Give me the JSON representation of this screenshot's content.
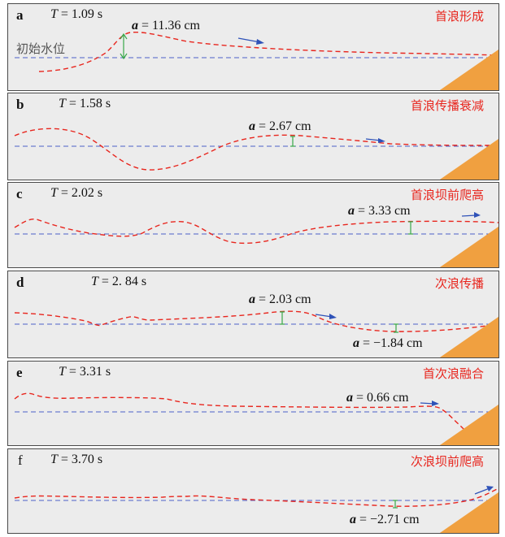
{
  "colors": {
    "background": "#ececec",
    "wave": "#e8261e",
    "still_water": "#4d5fc9",
    "arrow": "#2f52b8",
    "amplitude_marker": "#38a84a",
    "slope": "#f0a040",
    "title": "#e8261e"
  },
  "panels": [
    {
      "letter": "a",
      "time_var": "T",
      "time_text": "= 1.09 s",
      "title": "首浪形成",
      "initial_level_label": "初始水位",
      "annotations": [
        {
          "var": "a",
          "text": "= 11.36 cm"
        }
      ]
    },
    {
      "letter": "b",
      "time_var": "T",
      "time_text": "= 1.58 s",
      "title": "首浪传播衰减",
      "annotations": [
        {
          "var": "a",
          "text": "= 2.67 cm"
        }
      ]
    },
    {
      "letter": "c",
      "time_var": "T",
      "time_text": "= 2.02 s",
      "title": "首浪坝前爬高",
      "annotations": [
        {
          "var": "a",
          "text": "= 3.33 cm"
        }
      ]
    },
    {
      "letter": "d",
      "time_var": "T",
      "time_text": "= 2. 84 s",
      "title": "次浪传播",
      "annotations": [
        {
          "var": "a",
          "text": "= 2.03 cm"
        },
        {
          "var": "a",
          "text": "= −1.84 cm"
        }
      ]
    },
    {
      "letter": "e",
      "time_var": "T",
      "time_text": "= 3.31 s",
      "title": "首次浪融合",
      "annotations": [
        {
          "var": "a",
          "text": "= 0.66 cm"
        }
      ]
    },
    {
      "letter": "f",
      "time_var": "T",
      "time_text": "= 3.70 s",
      "title": "次浪坝前爬高",
      "annotations": [
        {
          "var": "a",
          "text": "= −2.71 cm"
        }
      ]
    }
  ]
}
